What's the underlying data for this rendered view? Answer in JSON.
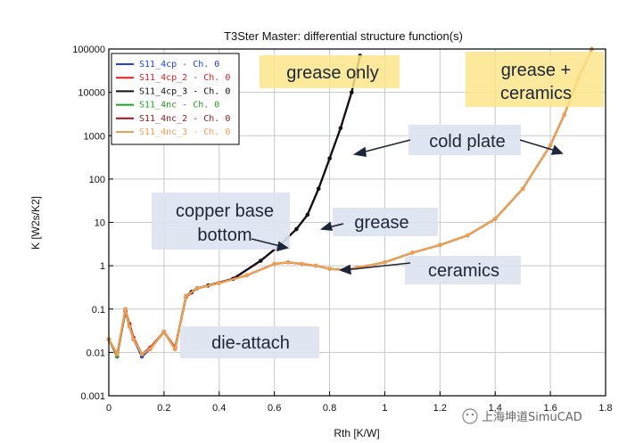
{
  "chart_data": {
    "type": "line",
    "title": "T3Ster Master: differential structure function(s)",
    "xlabel": "Rth  [K/W]",
    "ylabel": "K  [W2s/K2]",
    "xlim": [
      0,
      1.8
    ],
    "ylim": [
      0.001,
      100000
    ],
    "yscale": "log",
    "x_tick_labels": [
      "0",
      "0.2",
      "0.4",
      "0.6",
      "0.8",
      "1",
      "1.2",
      "1.4",
      "1.6",
      "1.8"
    ],
    "y_tick_labels": [
      "0.001",
      "0.01",
      "0.1",
      "1",
      "10",
      "100",
      "1000",
      "10000",
      "100000"
    ],
    "grid": true,
    "legend_position": "top-left",
    "series": [
      {
        "name": "S11_4cp - Ch. 0",
        "color": "#1f3fe0",
        "group": "grease only",
        "x": [
          0,
          0.03,
          0.06,
          0.075,
          0.09,
          0.12,
          0.15,
          0.2,
          0.24,
          0.28,
          0.3,
          0.32,
          0.36,
          0.45,
          0.55,
          0.62,
          0.68,
          0.72,
          0.76,
          0.8,
          0.84,
          0.88,
          0.91
        ],
        "y": [
          0.02,
          0.008,
          0.1,
          0.04,
          0.02,
          0.008,
          0.012,
          0.03,
          0.012,
          0.2,
          0.25,
          0.3,
          0.35,
          0.5,
          1.3,
          3,
          7,
          15,
          60,
          300,
          1500,
          10000,
          70000
        ]
      },
      {
        "name": "S11_4cp_2 - Ch. 0",
        "color": "#e02020",
        "group": "grease only",
        "x": [
          0,
          0.03,
          0.06,
          0.075,
          0.09,
          0.12,
          0.15,
          0.2,
          0.24,
          0.28,
          0.3,
          0.32,
          0.36,
          0.45,
          0.55,
          0.62,
          0.68,
          0.72,
          0.76,
          0.8,
          0.84,
          0.88,
          0.91
        ],
        "y": [
          0.02,
          0.009,
          0.1,
          0.045,
          0.022,
          0.009,
          0.013,
          0.03,
          0.013,
          0.19,
          0.24,
          0.3,
          0.35,
          0.5,
          1.3,
          3,
          7,
          15,
          60,
          300,
          1500,
          10000,
          70000
        ]
      },
      {
        "name": "S11_4cp_3 - Ch. 0",
        "color": "#111111",
        "group": "grease only",
        "x": [
          0,
          0.03,
          0.06,
          0.075,
          0.09,
          0.12,
          0.15,
          0.2,
          0.24,
          0.28,
          0.3,
          0.32,
          0.36,
          0.45,
          0.55,
          0.62,
          0.68,
          0.72,
          0.76,
          0.8,
          0.84,
          0.88,
          0.91
        ],
        "y": [
          0.02,
          0.009,
          0.09,
          0.04,
          0.02,
          0.009,
          0.012,
          0.03,
          0.012,
          0.2,
          0.25,
          0.3,
          0.35,
          0.5,
          1.3,
          3,
          7,
          15,
          60,
          300,
          1500,
          10000,
          70000
        ]
      },
      {
        "name": "S11_4nc - Ch. 0",
        "color": "#22a022",
        "group": "grease + ceramics",
        "x": [
          0,
          0.03,
          0.06,
          0.075,
          0.09,
          0.12,
          0.15,
          0.2,
          0.24,
          0.28,
          0.32,
          0.4,
          0.5,
          0.6,
          0.65,
          0.7,
          0.75,
          0.8,
          0.85,
          0.9,
          1.0,
          1.1,
          1.2,
          1.3,
          1.4,
          1.5,
          1.6,
          1.65,
          1.7,
          1.75
        ],
        "y": [
          0.02,
          0.008,
          0.09,
          0.04,
          0.02,
          0.009,
          0.012,
          0.03,
          0.012,
          0.2,
          0.3,
          0.4,
          0.6,
          1.1,
          1.2,
          1.1,
          1.0,
          0.85,
          0.8,
          0.9,
          1.2,
          2,
          3,
          5,
          12,
          60,
          600,
          3000,
          20000,
          100000
        ]
      },
      {
        "name": "S11_4nc_2 - Ch. 0",
        "color": "#8b1a1a",
        "group": "grease + ceramics",
        "x": [
          0,
          0.03,
          0.06,
          0.075,
          0.09,
          0.12,
          0.15,
          0.2,
          0.24,
          0.28,
          0.32,
          0.4,
          0.5,
          0.6,
          0.65,
          0.7,
          0.75,
          0.8,
          0.85,
          0.9,
          1.0,
          1.1,
          1.2,
          1.3,
          1.4,
          1.5,
          1.6,
          1.65,
          1.7,
          1.75
        ],
        "y": [
          0.02,
          0.009,
          0.09,
          0.045,
          0.02,
          0.009,
          0.012,
          0.03,
          0.012,
          0.2,
          0.3,
          0.4,
          0.6,
          1.1,
          1.2,
          1.1,
          1.0,
          0.85,
          0.8,
          0.9,
          1.2,
          2,
          3,
          5,
          12,
          60,
          600,
          3000,
          20000,
          100000
        ]
      },
      {
        "name": "S11_4nc_3 - Ch. 0",
        "color": "#f0a050",
        "group": "grease + ceramics",
        "x": [
          0,
          0.03,
          0.06,
          0.075,
          0.09,
          0.12,
          0.15,
          0.2,
          0.24,
          0.28,
          0.32,
          0.4,
          0.5,
          0.6,
          0.65,
          0.7,
          0.75,
          0.8,
          0.85,
          0.9,
          1.0,
          1.1,
          1.2,
          1.3,
          1.4,
          1.5,
          1.6,
          1.65,
          1.7,
          1.75
        ],
        "y": [
          0.02,
          0.009,
          0.1,
          0.04,
          0.02,
          0.009,
          0.012,
          0.03,
          0.012,
          0.2,
          0.3,
          0.4,
          0.6,
          1.1,
          1.2,
          1.1,
          1.0,
          0.85,
          0.8,
          0.9,
          1.2,
          2,
          3,
          5,
          12,
          60,
          600,
          3000,
          20000,
          100000
        ]
      }
    ],
    "annotations": [
      {
        "text": "grease only",
        "x": 0.81,
        "y": 40000,
        "kind": "highlight"
      },
      {
        "text": "grease +",
        "x": 1.57,
        "y": 40000,
        "kind": "highlight"
      },
      {
        "text": "ceramics",
        "x": 1.57,
        "y": 12000,
        "kind": "highlight"
      },
      {
        "text": "cold plate",
        "x": 1.3,
        "y": 1000,
        "kind": "box"
      },
      {
        "text": "copper base",
        "x": 0.43,
        "y": 27,
        "kind": "box"
      },
      {
        "text": "bottom",
        "x": 0.43,
        "y": 8,
        "kind": "box"
      },
      {
        "text": "grease",
        "x": 0.98,
        "y": 12,
        "kind": "box"
      },
      {
        "text": "ceramics",
        "x": 1.29,
        "y": 1,
        "kind": "box"
      },
      {
        "text": "die-attach",
        "x": 0.42,
        "y": 0.019,
        "kind": "box"
      }
    ],
    "watermark": "上海坤道SimuCAD"
  }
}
